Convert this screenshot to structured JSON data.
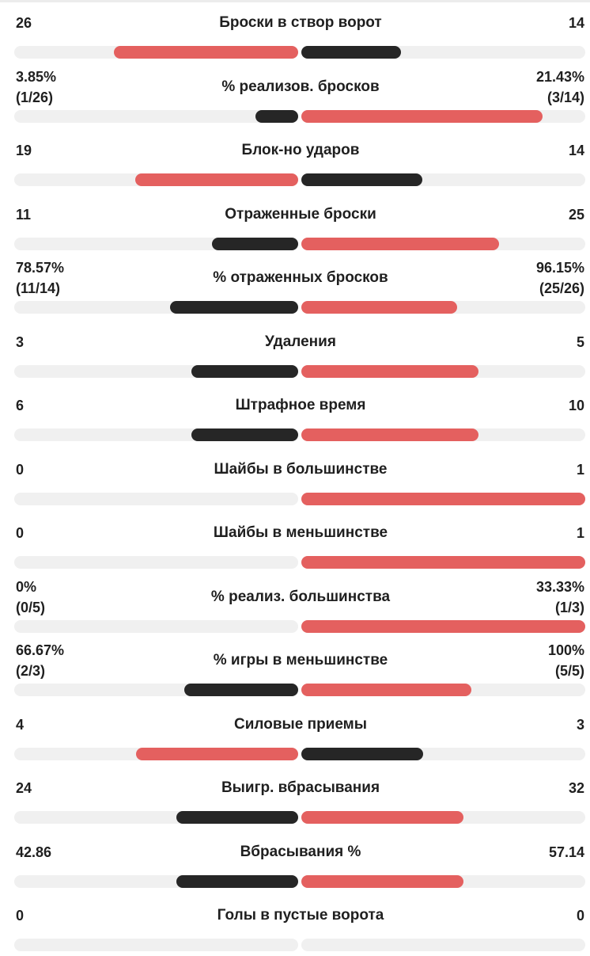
{
  "colors": {
    "red": "#e4605f",
    "dark": "#262626",
    "track": "#f0f0f0"
  },
  "stats": [
    {
      "label": "Броски в створ ворот",
      "left": [
        "26"
      ],
      "right": [
        "14"
      ],
      "left_frac": 0.65,
      "right_frac": 0.35,
      "left_color": "red",
      "right_color": "dark"
    },
    {
      "label": "% реализов. бросков",
      "left": [
        "3.85%",
        "(1/26)"
      ],
      "right": [
        "21.43%",
        "(3/14)"
      ],
      "left_frac": 0.15,
      "right_frac": 0.85,
      "left_color": "dark",
      "right_color": "red"
    },
    {
      "label": "Блок-но ударов",
      "left": [
        "19"
      ],
      "right": [
        "14"
      ],
      "left_frac": 0.575,
      "right_frac": 0.425,
      "left_color": "red",
      "right_color": "dark"
    },
    {
      "label": "Отраженные броски",
      "left": [
        "11"
      ],
      "right": [
        "25"
      ],
      "left_frac": 0.305,
      "right_frac": 0.695,
      "left_color": "dark",
      "right_color": "red"
    },
    {
      "label": "% отраженных бросков",
      "left": [
        "78.57%",
        "(11/14)"
      ],
      "right": [
        "96.15%",
        "(25/26)"
      ],
      "left_frac": 0.45,
      "right_frac": 0.55,
      "left_color": "dark",
      "right_color": "red"
    },
    {
      "label": "Удаления",
      "left": [
        "3"
      ],
      "right": [
        "5"
      ],
      "left_frac": 0.375,
      "right_frac": 0.625,
      "left_color": "dark",
      "right_color": "red"
    },
    {
      "label": "Штрафное время",
      "left": [
        "6"
      ],
      "right": [
        "10"
      ],
      "left_frac": 0.375,
      "right_frac": 0.625,
      "left_color": "dark",
      "right_color": "red"
    },
    {
      "label": "Шайбы в большинстве",
      "left": [
        "0"
      ],
      "right": [
        "1"
      ],
      "left_frac": 0,
      "right_frac": 1,
      "left_color": "dark",
      "right_color": "red"
    },
    {
      "label": "Шайбы в меньшинстве",
      "left": [
        "0"
      ],
      "right": [
        "1"
      ],
      "left_frac": 0,
      "right_frac": 1,
      "left_color": "dark",
      "right_color": "red"
    },
    {
      "label": "% реализ. большинства",
      "left": [
        "0%",
        "(0/5)"
      ],
      "right": [
        "33.33%",
        "(1/3)"
      ],
      "left_frac": 0,
      "right_frac": 1,
      "left_color": "dark",
      "right_color": "red"
    },
    {
      "label": "% игры в меньшинстве",
      "left": [
        "66.67%",
        "(2/3)"
      ],
      "right": [
        "100%",
        "(5/5)"
      ],
      "left_frac": 0.4,
      "right_frac": 0.6,
      "left_color": "dark",
      "right_color": "red"
    },
    {
      "label": "Силовые приемы",
      "left": [
        "4"
      ],
      "right": [
        "3"
      ],
      "left_frac": 0.57,
      "right_frac": 0.43,
      "left_color": "red",
      "right_color": "dark"
    },
    {
      "label": "Выигр. вбрасывания",
      "left": [
        "24"
      ],
      "right": [
        "32"
      ],
      "left_frac": 0.43,
      "right_frac": 0.57,
      "left_color": "dark",
      "right_color": "red"
    },
    {
      "label": "Вбрасывания %",
      "left": [
        "42.86"
      ],
      "right": [
        "57.14"
      ],
      "left_frac": 0.43,
      "right_frac": 0.57,
      "left_color": "dark",
      "right_color": "red"
    },
    {
      "label": "Голы в пустые ворота",
      "left": [
        "0"
      ],
      "right": [
        "0"
      ],
      "left_frac": 0,
      "right_frac": 0,
      "left_color": "dark",
      "right_color": "red"
    }
  ]
}
